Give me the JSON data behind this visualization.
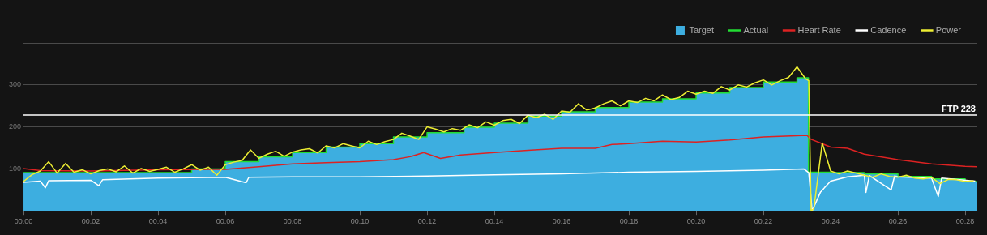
{
  "chart_data": {
    "type": "line",
    "legend": "top right",
    "grid": "y",
    "xlim": [
      0,
      28.36
    ],
    "ylim": [
      0,
      400
    ],
    "xticks": [
      {
        "value": 0,
        "label": "00:00"
      },
      {
        "value": 2,
        "label": "00:02"
      },
      {
        "value": 4,
        "label": "00:04"
      },
      {
        "value": 6,
        "label": "00:06"
      },
      {
        "value": 8,
        "label": "00:08"
      },
      {
        "value": 10,
        "label": "00:10"
      },
      {
        "value": 12,
        "label": "00:12"
      },
      {
        "value": 14,
        "label": "00:14"
      },
      {
        "value": 16,
        "label": "00:16"
      },
      {
        "value": 18,
        "label": "00:18"
      },
      {
        "value": 20,
        "label": "00:20"
      },
      {
        "value": 22,
        "label": "00:22"
      },
      {
        "value": 24,
        "label": "00:24"
      },
      {
        "value": 26,
        "label": "00:26"
      },
      {
        "value": 28,
        "label": "00:28"
      }
    ],
    "yticks": [
      {
        "value": 0,
        "label": null
      },
      100,
      200,
      300,
      {
        "value": 400,
        "label": null
      }
    ],
    "ref_lines": [
      {
        "axis": "y",
        "value": 228,
        "label": "FTP 228",
        "color": "#ffffff"
      }
    ],
    "series": [
      {
        "name": "Target",
        "type": "area",
        "color": "#3daee0",
        "x": [
          0,
          5,
          5,
          6,
          6,
          7,
          7,
          8,
          8,
          9,
          9,
          10,
          10,
          11,
          11,
          12,
          12,
          13.1,
          13.1,
          14,
          14,
          15,
          15,
          16,
          16,
          17,
          17,
          18,
          18,
          19,
          19,
          20,
          20,
          21,
          21,
          22,
          22,
          23,
          23,
          23.34,
          23.34,
          24,
          24,
          25,
          25,
          26,
          26,
          27,
          27,
          28,
          28,
          28.36
        ],
        "values": [
          91,
          91,
          100,
          100,
          117,
          117,
          129,
          129,
          139,
          139,
          152,
          152,
          160,
          160,
          176,
          176,
          186,
          186,
          199,
          199,
          209,
          209,
          226,
          226,
          236,
          236,
          246,
          246,
          259,
          259,
          267,
          267,
          281,
          281,
          294,
          294,
          307,
          307,
          317,
          317,
          92,
          92,
          91,
          91,
          88,
          88,
          82,
          82,
          76,
          76,
          70,
          70
        ]
      },
      {
        "name": "Actual",
        "type": "step",
        "color": "#22dd33",
        "x": [
          0,
          5,
          6,
          7,
          8,
          9,
          10,
          11,
          12,
          13.1,
          14,
          15,
          16,
          17,
          18,
          19,
          20,
          21,
          22,
          23,
          23.34,
          24,
          25,
          26,
          27,
          28,
          28.36
        ],
        "values": [
          91,
          100,
          117,
          129,
          139,
          152,
          160,
          176,
          186,
          199,
          209,
          226,
          236,
          246,
          259,
          267,
          281,
          294,
          307,
          317,
          92,
          91,
          88,
          82,
          76,
          70,
          69
        ]
      },
      {
        "name": "Heart Rate",
        "color": "#dd2222",
        "x": [
          0,
          0.5,
          2,
          4,
          6,
          7,
          8,
          9,
          10,
          11,
          11.5,
          11.9,
          12.4,
          13,
          14,
          15,
          16,
          17,
          17.5,
          18,
          19,
          20,
          21,
          22,
          23.3,
          23.4,
          24,
          24.5,
          25,
          26,
          27,
          28,
          28.36
        ],
        "values": [
          101,
          96,
          95,
          98,
          99,
          105,
          112,
          115,
          117,
          122,
          129,
          139,
          125,
          133,
          139,
          144,
          149,
          149,
          158,
          160,
          166,
          164,
          169,
          176,
          180,
          171,
          152,
          149,
          135,
          122,
          112,
          106,
          105
        ]
      },
      {
        "name": "Cadence",
        "color": "#ffffff",
        "x": [
          0,
          0.5,
          0.65,
          0.75,
          2,
          2.24,
          2.35,
          4,
          6,
          6.62,
          6.7,
          8,
          10,
          12,
          14,
          16,
          18,
          20,
          22,
          23.2,
          23.35,
          23.45,
          23.7,
          24,
          24.5,
          25,
          25.05,
          25.15,
          25.8,
          25.9,
          26,
          27,
          27.2,
          27.3,
          28.3
        ],
        "values": [
          68,
          71,
          55,
          72,
          73,
          60,
          74,
          78,
          80,
          67,
          80,
          81,
          81,
          83,
          86,
          88,
          92,
          94,
          97,
          100,
          91,
          0,
          45,
          71,
          81,
          85,
          44,
          84,
          50,
          83,
          81,
          78,
          34,
          78,
          71
        ]
      },
      {
        "name": "Power",
        "color": "#eeee33",
        "x": [
          0,
          0.25,
          0.5,
          0.75,
          1,
          1.25,
          1.5,
          1.75,
          2,
          2.25,
          2.5,
          2.75,
          3,
          3.25,
          3.5,
          3.75,
          4,
          4.25,
          4.5,
          4.75,
          5,
          5.25,
          5.5,
          5.75,
          6,
          6.25,
          6.5,
          6.75,
          7,
          7.25,
          7.5,
          7.75,
          8,
          8.25,
          8.5,
          8.75,
          9,
          9.25,
          9.5,
          9.75,
          10,
          10.25,
          10.5,
          10.75,
          11,
          11.25,
          11.5,
          11.75,
          12,
          12.25,
          12.5,
          12.75,
          13,
          13.25,
          13.5,
          13.75,
          14,
          14.25,
          14.5,
          14.75,
          15,
          15.25,
          15.5,
          15.75,
          16,
          16.25,
          16.5,
          16.75,
          17,
          17.25,
          17.5,
          17.75,
          18,
          18.25,
          18.5,
          18.75,
          19,
          19.25,
          19.5,
          19.75,
          20,
          20.25,
          20.5,
          20.75,
          21,
          21.25,
          21.5,
          21.75,
          22,
          22.25,
          22.5,
          22.75,
          23,
          23.25,
          23.35,
          23.42,
          23.5,
          23.75,
          24,
          24.25,
          24.5,
          24.75,
          25,
          25.25,
          25.5,
          25.75,
          26,
          26.25,
          26.5,
          26.75,
          27,
          27.25,
          27.5,
          27.75,
          28,
          28.25
        ],
        "values": [
          70,
          86,
          95,
          117,
          90,
          113,
          92,
          98,
          88,
          96,
          100,
          93,
          107,
          90,
          101,
          94,
          99,
          104,
          92,
          100,
          110,
          97,
          104,
          85,
          110,
          116,
          120,
          145,
          125,
          135,
          142,
          130,
          140,
          145,
          148,
          138,
          155,
          150,
          160,
          155,
          150,
          166,
          158,
          165,
          170,
          185,
          178,
          170,
          200,
          195,
          188,
          196,
          192,
          205,
          198,
          212,
          204,
          215,
          218,
          208,
          228,
          222,
          230,
          218,
          238,
          235,
          255,
          240,
          245,
          255,
          262,
          250,
          262,
          258,
          268,
          262,
          276,
          265,
          270,
          285,
          278,
          285,
          280,
          296,
          288,
          300,
          295,
          305,
          312,
          300,
          310,
          318,
          343,
          315,
          310,
          0,
          5,
          162,
          95,
          88,
          95,
          90,
          85,
          80,
          88,
          82,
          80,
          85,
          78,
          76,
          80,
          65,
          75,
          74,
          70,
          72
        ]
      }
    ]
  }
}
